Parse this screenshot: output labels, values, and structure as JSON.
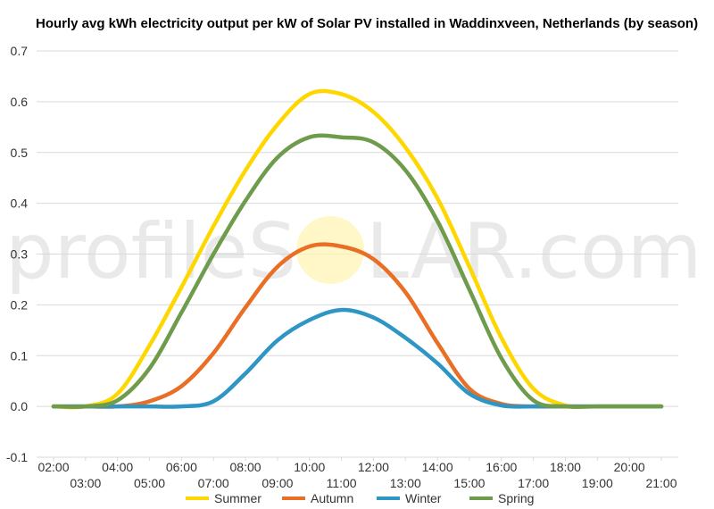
{
  "chart_data": {
    "type": "line",
    "title": "Hourly avg kWh electricity output per kW of Solar PV installed in Waddinxveen, Netherlands (by season)",
    "xlabel": "",
    "ylabel": "",
    "x": [
      "02:00",
      "03:00",
      "04:00",
      "05:00",
      "06:00",
      "07:00",
      "08:00",
      "09:00",
      "10:00",
      "11:00",
      "12:00",
      "13:00",
      "14:00",
      "15:00",
      "16:00",
      "17:00",
      "18:00",
      "19:00",
      "20:00",
      "21:00"
    ],
    "ylim": [
      -0.1,
      0.7
    ],
    "yticks": [
      "-0.1",
      "0.0",
      "0.1",
      "0.2",
      "0.3",
      "0.4",
      "0.5",
      "0.6",
      "0.7"
    ],
    "grid": true,
    "legend_position": "bottom",
    "series": [
      {
        "name": "Summer",
        "color": "#FFD700",
        "values": [
          0.0,
          0.0,
          0.025,
          0.12,
          0.235,
          0.355,
          0.465,
          0.555,
          0.615,
          0.615,
          0.58,
          0.51,
          0.41,
          0.275,
          0.135,
          0.035,
          0.002,
          0.0,
          0.0,
          0.0
        ]
      },
      {
        "name": "Autumn",
        "color": "#E86F25",
        "values": [
          0.0,
          0.0,
          0.0,
          0.01,
          0.04,
          0.105,
          0.195,
          0.275,
          0.315,
          0.315,
          0.29,
          0.225,
          0.125,
          0.035,
          0.005,
          0.0,
          0.0,
          0.0,
          0.0,
          0.0
        ]
      },
      {
        "name": "Winter",
        "color": "#2E95C4",
        "values": [
          0.0,
          0.0,
          0.0,
          0.0,
          0.0,
          0.01,
          0.065,
          0.13,
          0.17,
          0.19,
          0.175,
          0.135,
          0.085,
          0.025,
          0.002,
          0.0,
          0.0,
          0.0,
          0.0,
          0.0
        ]
      },
      {
        "name": "Spring",
        "color": "#6E9B4C",
        "values": [
          0.0,
          0.0,
          0.012,
          0.075,
          0.185,
          0.3,
          0.405,
          0.49,
          0.53,
          0.53,
          0.52,
          0.465,
          0.365,
          0.23,
          0.095,
          0.012,
          0.0,
          0.0,
          0.0,
          0.0
        ]
      }
    ]
  },
  "watermark": {
    "text_left": "profileS",
    "text_right": "LAR.com"
  },
  "colors": {
    "grid": "#D9D9D9",
    "axis_text": "#333333"
  }
}
